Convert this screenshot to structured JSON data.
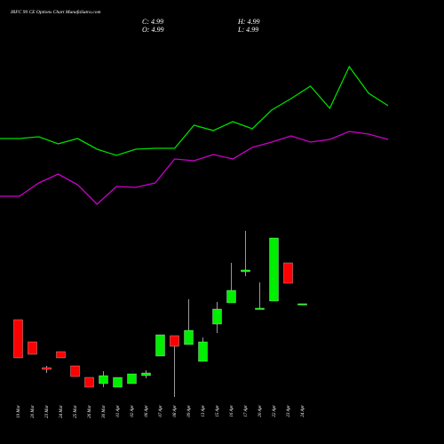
{
  "chart_data": {
    "type": "candlestick",
    "title": "IRFC 99 CE Options  Chart MunafaSutra.com",
    "quote": [
      "C: 4.99",
      "H: 4.99",
      "O: 4.99",
      "L: 4.99"
    ],
    "categories": [
      "19 Mar",
      "20 Mar",
      "23 Mar",
      "24 Mar",
      "25 Mar",
      "26 Mar",
      "30 Mar",
      "01 Apr",
      "02 Apr",
      "06 Apr",
      "07 Apr",
      "08 Apr",
      "09 Apr",
      "13 Apr",
      "15 Apr",
      "16 Apr",
      "17 Apr",
      "20 Apr",
      "22 Apr",
      "23 Apr",
      "24 Apr"
    ],
    "open": [
      4.27,
      3.27,
      2.11,
      2.83,
      2.19,
      1.67,
      1.39,
      1.23,
      1.39,
      1.75,
      2.63,
      3.55,
      3.15,
      2.39,
      4.07,
      5.03,
      6.43,
      4.75,
      5.11,
      6.83,
      4.99
    ],
    "high": [
      4.27,
      3.27,
      2.19,
      2.83,
      2.19,
      1.67,
      1.95,
      1.67,
      1.83,
      1.99,
      3.59,
      3.55,
      5.19,
      3.47,
      5.07,
      6.83,
      8.27,
      5.95,
      7.95,
      6.83,
      4.99
    ],
    "low": [
      2.55,
      2.71,
      1.87,
      2.55,
      1.71,
      1.23,
      1.23,
      1.23,
      1.39,
      1.63,
      2.63,
      0.79,
      3.15,
      2.39,
      3.67,
      5.03,
      6.23,
      4.75,
      5.11,
      5.91,
      4.99
    ],
    "close": [
      2.55,
      2.71,
      2.03,
      2.55,
      1.71,
      1.23,
      1.75,
      1.67,
      1.83,
      1.87,
      3.59,
      3.07,
      3.79,
      3.27,
      4.75,
      5.59,
      6.51,
      4.79,
      7.95,
      5.91,
      4.99
    ],
    "up_color": "#00ee00",
    "down_color": "#ff0000",
    "ylim": [
      0,
      10
    ],
    "indicator_ylim": [
      0,
      100
    ],
    "series": [
      {
        "color": "#00dd00",
        "values": [
          47,
          47,
          48,
          44,
          47,
          41,
          37.5,
          41,
          41.5,
          41.5,
          54.5,
          51.5,
          56.5,
          52.5,
          63,
          69.5,
          76.5,
          64,
          87.5,
          72.5,
          65.5
        ]
      },
      {
        "color": "#cc00cc",
        "values": [
          14.5,
          14.5,
          22,
          27,
          21,
          10,
          20,
          19.5,
          22,
          35.5,
          34.5,
          38,
          35.5,
          42,
          45,
          48.5,
          45,
          46.5,
          51,
          49.5,
          46.5
        ]
      }
    ]
  }
}
